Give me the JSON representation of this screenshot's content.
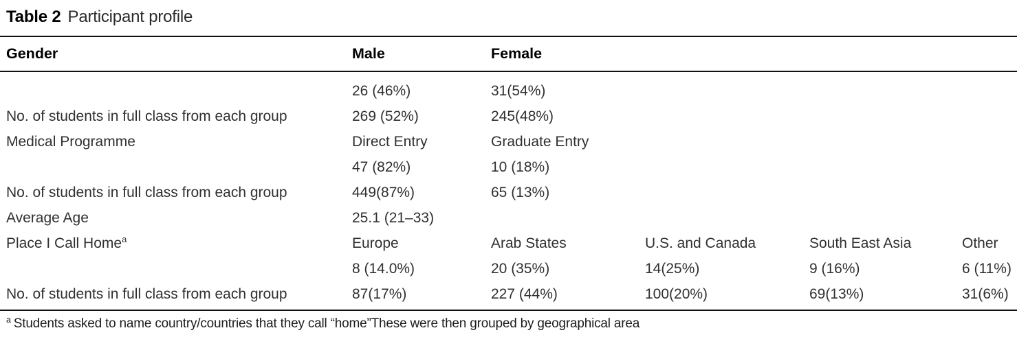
{
  "title": {
    "label": "Table 2",
    "caption": "Participant profile"
  },
  "colors": {
    "background": "#ffffff",
    "heading_text": "#000000",
    "body_text": "#303030",
    "rule": "#111111"
  },
  "table": {
    "header": [
      "Gender",
      "Male",
      "Female",
      "",
      "",
      ""
    ],
    "rows": [
      [
        "",
        "26 (46%)",
        "31(54%)",
        "",
        "",
        ""
      ],
      [
        "No. of students in full class from each group",
        "269 (52%)",
        "245(48%)",
        "",
        "",
        ""
      ],
      [
        "Medical Programme",
        "Direct Entry",
        "Graduate Entry",
        "",
        "",
        ""
      ],
      [
        "",
        "47 (82%)",
        "10 (18%)",
        "",
        "",
        ""
      ],
      [
        "No. of students in full class from each group",
        "449(87%)",
        "65 (13%)",
        "",
        "",
        ""
      ],
      [
        "Average Age",
        "25.1 (21–33)",
        "",
        "",
        "",
        ""
      ],
      [
        {
          "text": "Place I Call Home",
          "sup": "a"
        },
        "Europe",
        "Arab States",
        "U.S. and Canada",
        "South East Asia",
        "Other"
      ],
      [
        "",
        "8 (14.0%)",
        "20 (35%)",
        "14(25%)",
        "9 (16%)",
        "6 (11%)"
      ],
      [
        "No. of students in full class from each group",
        "87(17%)",
        "227 (44%)",
        "100(20%)",
        "69(13%)",
        "31(6%)"
      ]
    ],
    "footnote": {
      "marker": "a",
      "text": "Students asked to name country/countries that they call “home”These were then grouped by geographical area"
    }
  }
}
